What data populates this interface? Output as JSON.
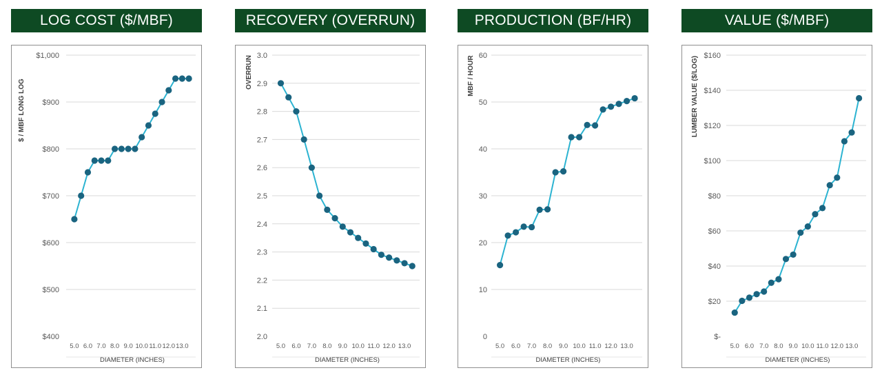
{
  "colors": {
    "banner": "#0e4a23",
    "line": "#2bb3d1",
    "marker": "#1a6480",
    "grid": "#d9d9d9"
  },
  "chart_data": [
    {
      "type": "line",
      "title": "LOG COST ($/MBF)",
      "ylabel": "$ / MBF LONG LOG",
      "xlabel": "DIAMETER (INCHES)",
      "ylim": [
        400,
        1000
      ],
      "ystep": 100,
      "yticks": [
        "$400",
        "$500",
        "$600",
        "$700",
        "$800",
        "$900",
        "$1,000"
      ],
      "xticks": [
        "5.0",
        "6.0",
        "7.0",
        "8.0",
        "9.0",
        "10.0",
        "11.0",
        "12.0",
        "13.0"
      ],
      "x": [
        5.0,
        5.5,
        6.0,
        6.5,
        7.0,
        7.5,
        8.0,
        8.5,
        9.0,
        9.5,
        10.0,
        10.5,
        11.0,
        11.5,
        12.0,
        12.5,
        13.0,
        13.5
      ],
      "values": [
        650,
        700,
        750,
        775,
        775,
        775,
        800,
        800,
        800,
        800,
        825,
        850,
        875,
        900,
        925,
        950,
        950,
        950
      ],
      "grid": true
    },
    {
      "type": "line",
      "title": "RECOVERY (OVERRUN)",
      "ylabel": "OVERRUN",
      "xlabel": "DIAMETER (INCHES)",
      "ylim": [
        2.0,
        3.0
      ],
      "ystep": 0.1,
      "yticks": [
        "2.0",
        "2.1",
        "2.2",
        "2.3",
        "2.4",
        "2.5",
        "2.6",
        "2.7",
        "2.8",
        "2.9",
        "3.0"
      ],
      "xticks": [
        "5.0",
        "6.0",
        "7.0",
        "8.0",
        "9.0",
        "10.0",
        "11.0",
        "12.0",
        "13.0"
      ],
      "x": [
        5.0,
        5.5,
        6.0,
        6.5,
        7.0,
        7.5,
        8.0,
        8.5,
        9.0,
        9.5,
        10.0,
        10.5,
        11.0,
        11.5,
        12.0,
        12.5,
        13.0,
        13.5
      ],
      "values": [
        2.9,
        2.85,
        2.8,
        2.7,
        2.6,
        2.5,
        2.45,
        2.42,
        2.39,
        2.37,
        2.35,
        2.33,
        2.31,
        2.29,
        2.28,
        2.27,
        2.26,
        2.25
      ],
      "grid": true
    },
    {
      "type": "line",
      "title": "PRODUCTION (BF/HR)",
      "ylabel": "MBF / HOUR",
      "xlabel": "DIAMETER (INCHES)",
      "ylim": [
        0,
        60
      ],
      "ystep": 10,
      "yticks": [
        "0",
        "10",
        "20",
        "30",
        "40",
        "50",
        "60"
      ],
      "xticks": [
        "5.0",
        "6.0",
        "7.0",
        "8.0",
        "9.0",
        "10.0",
        "11.0",
        "12.0",
        "13.0"
      ],
      "x": [
        5.0,
        5.5,
        6.0,
        6.5,
        7.0,
        7.5,
        8.0,
        8.5,
        9.0,
        9.5,
        10.0,
        10.5,
        11.0,
        11.5,
        12.0,
        12.5,
        13.0,
        13.5
      ],
      "values": [
        15.2,
        21.5,
        22.2,
        23.4,
        23.3,
        27.0,
        27.1,
        35.0,
        35.2,
        42.5,
        42.5,
        45.1,
        45.0,
        48.4,
        49.0,
        49.6,
        50.2,
        50.8
      ],
      "grid": true
    },
    {
      "type": "line",
      "title": "VALUE ($/MBF)",
      "ylabel": "LUMBER VALUE ($/LOG)",
      "xlabel": "DIAMETER (INCHES)",
      "ylim": [
        0,
        160
      ],
      "ystep": 20,
      "yticks": [
        "$-",
        "$20",
        "$40",
        "$60",
        "$80",
        "$100",
        "$120",
        "$140",
        "$160"
      ],
      "xticks": [
        "5.0",
        "6.0",
        "7.0",
        "8.0",
        "9.0",
        "10.0",
        "11.0",
        "12.0",
        "13.0"
      ],
      "x": [
        5.0,
        5.5,
        6.0,
        6.5,
        7.0,
        7.5,
        8.0,
        8.5,
        9.0,
        9.5,
        10.0,
        10.5,
        11.0,
        11.5,
        12.0,
        12.5,
        13.0,
        13.5
      ],
      "values": [
        13.5,
        20.2,
        22.0,
        24.0,
        25.5,
        30.5,
        32.5,
        44.0,
        46.5,
        59.0,
        62.5,
        69.5,
        73.0,
        86.0,
        90.3,
        111.0,
        116.0,
        135.5
      ],
      "grid": true
    }
  ]
}
